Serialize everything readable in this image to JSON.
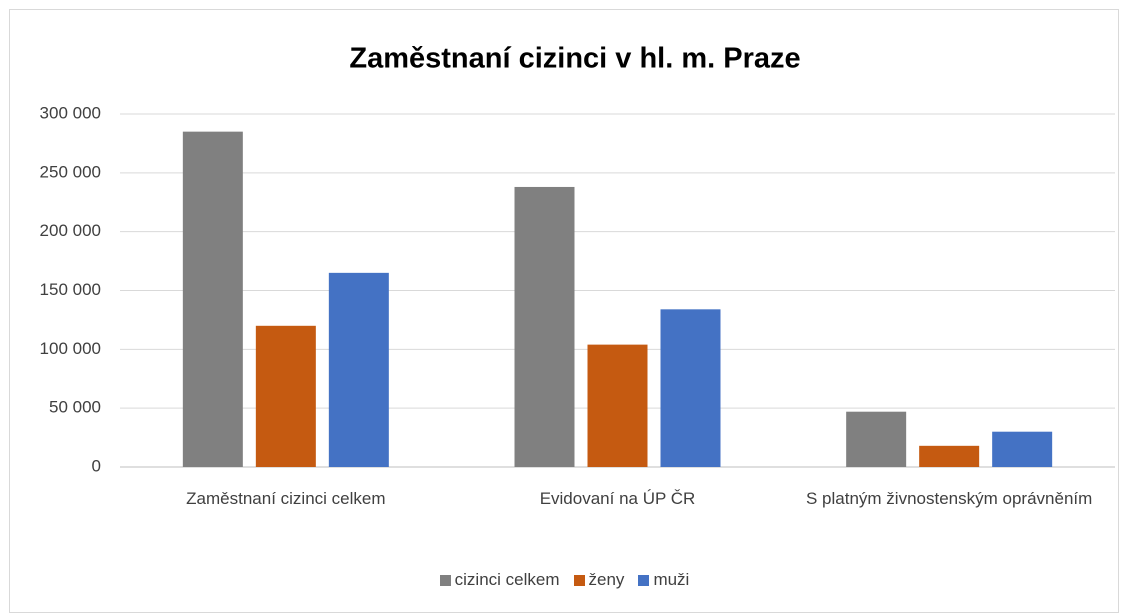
{
  "chart_data": {
    "type": "bar",
    "title": "Zaměstnaní cizinci v hl. m. Praze",
    "categories": [
      "Zaměstnaní cizinci celkem",
      "Evidovaní na ÚP ČR",
      "S platným živnostenským oprávněním"
    ],
    "series": [
      {
        "name": "cizinci celkem",
        "color": "#808080",
        "values": [
          285000,
          238000,
          47000
        ]
      },
      {
        "name": "ženy",
        "color": "#c55a11",
        "values": [
          120000,
          104000,
          18000
        ]
      },
      {
        "name": "muži",
        "color": "#4472c4",
        "values": [
          165000,
          134000,
          30000
        ]
      }
    ],
    "ylim": [
      0,
      300000
    ],
    "yticks": [
      0,
      {
        "value": 50000,
        "label": "50 000"
      },
      {
        "value": 100000,
        "label": "100 000"
      },
      {
        "value": 150000,
        "label": "150 000"
      },
      {
        "value": 200000,
        "label": "200 000"
      },
      {
        "value": 250000,
        "label": "250 000"
      },
      {
        "value": 300000,
        "label": "300 000"
      }
    ],
    "grid": true,
    "legend": "bottom"
  }
}
